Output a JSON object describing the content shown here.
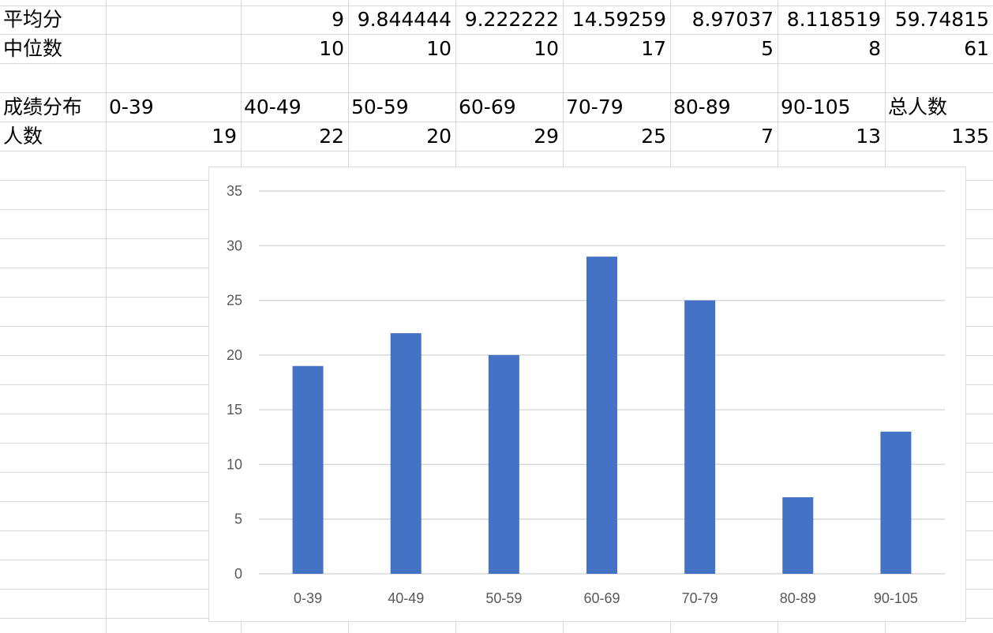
{
  "sheet": {
    "rows": [
      {
        "label": "平均分",
        "values": [
          "",
          "9",
          "9.844444",
          "9.222222",
          "14.59259",
          "8.97037",
          "8.118519",
          "59.74815"
        ]
      },
      {
        "label": "中位数",
        "values": [
          "",
          "10",
          "10",
          "10",
          "17",
          "5",
          "8",
          "61"
        ]
      },
      {
        "label": "",
        "values": [
          "",
          "",
          "",
          "",
          "",
          "",
          "",
          ""
        ]
      },
      {
        "label": "成绩分布",
        "values": [
          "0-39",
          "40-49",
          "50-59",
          "60-69",
          "70-79",
          "80-89",
          "90-105",
          "总人数"
        ]
      },
      {
        "label": "人数",
        "values": [
          "19",
          "22",
          "20",
          "29",
          "25",
          "7",
          "13",
          "135"
        ]
      }
    ]
  },
  "chart_data": {
    "type": "bar",
    "categories": [
      "0-39",
      "40-49",
      "50-59",
      "60-69",
      "70-79",
      "80-89",
      "90-105"
    ],
    "values": [
      19,
      22,
      20,
      29,
      25,
      7,
      13
    ],
    "title": "",
    "xlabel": "",
    "ylabel": "",
    "ylim": [
      0,
      35
    ],
    "yticks": [
      0,
      5,
      10,
      15,
      20,
      25,
      30,
      35
    ],
    "grid": true,
    "legend": "none",
    "bar_color": "#4472c4"
  }
}
